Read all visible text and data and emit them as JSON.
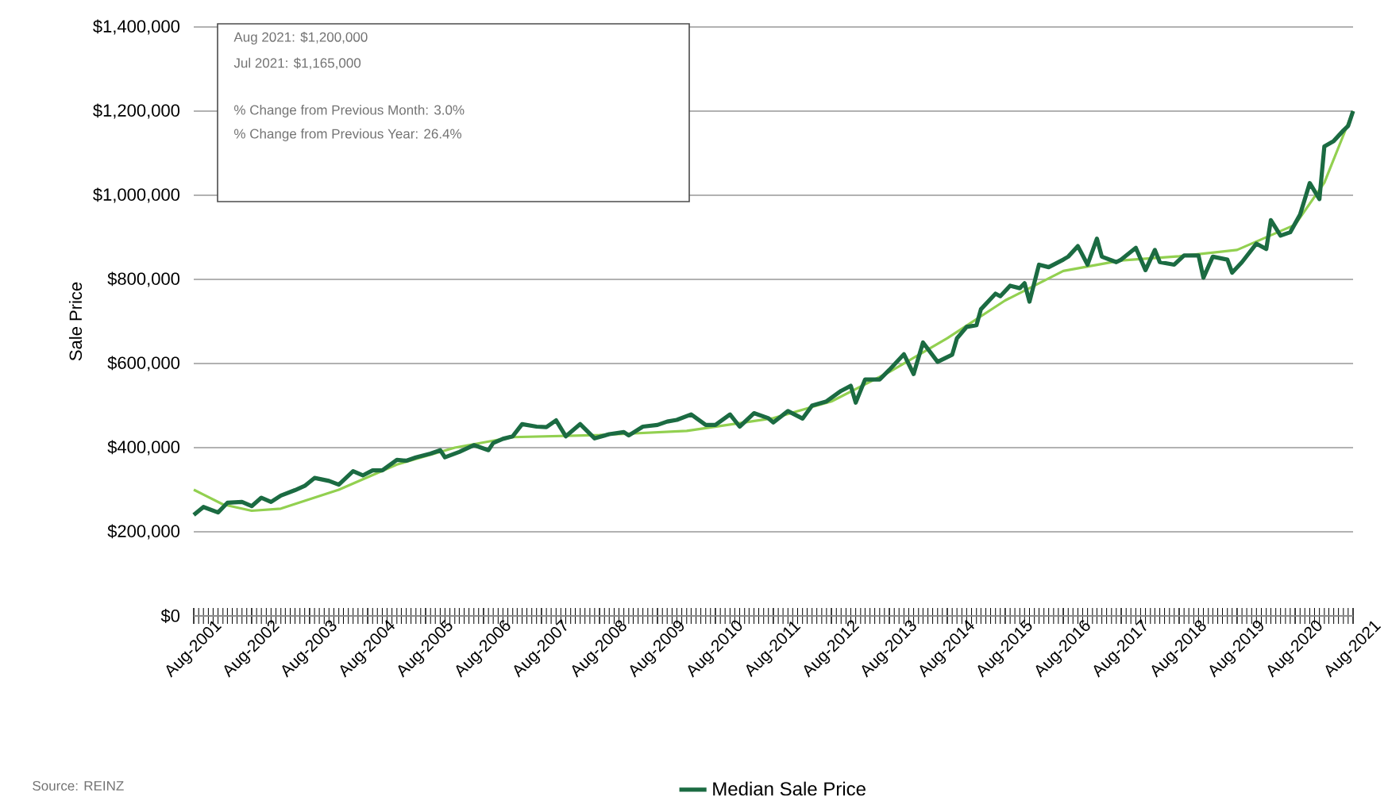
{
  "chart_data": {
    "type": "line",
    "ylabel": "Sale Price",
    "x": [
      "2001-08",
      "2001-10",
      "2002-01",
      "2002-03",
      "2002-06",
      "2002-08",
      "2002-10",
      "2002-12",
      "2003-02",
      "2003-05",
      "2003-07",
      "2003-09",
      "2003-12",
      "2004-02",
      "2004-05",
      "2004-07",
      "2004-09",
      "2004-11",
      "2005-02",
      "2005-04",
      "2005-06",
      "2005-09",
      "2005-11",
      "2005-12",
      "2006-03",
      "2006-06",
      "2006-09",
      "2006-10",
      "2006-12",
      "2007-02",
      "2007-04",
      "2007-07",
      "2007-09",
      "2007-11",
      "2008-01",
      "2008-04",
      "2008-07",
      "2008-10",
      "2009-01",
      "2009-02",
      "2009-05",
      "2009-08",
      "2009-10",
      "2009-12",
      "2010-03",
      "2010-06",
      "2010-08",
      "2010-11",
      "2011-01",
      "2011-04",
      "2011-07",
      "2011-08",
      "2011-11",
      "2012-02",
      "2012-04",
      "2012-07",
      "2012-10",
      "2012-12",
      "2013-01",
      "2013-03",
      "2013-06",
      "2013-08",
      "2013-11",
      "2014-01",
      "2014-03",
      "2014-06",
      "2014-09",
      "2014-10",
      "2014-12",
      "2015-02",
      "2015-03",
      "2015-06",
      "2015-07",
      "2015-09",
      "2015-11",
      "2015-12",
      "2016-01",
      "2016-03",
      "2016-05",
      "2016-08",
      "2016-09",
      "2016-11",
      "2017-01",
      "2017-03",
      "2017-04",
      "2017-07",
      "2017-08",
      "2017-11",
      "2018-01",
      "2018-03",
      "2018-04",
      "2018-07",
      "2018-09",
      "2018-12",
      "2019-01",
      "2019-03",
      "2019-06",
      "2019-07",
      "2019-09",
      "2019-12",
      "2020-02",
      "2020-03",
      "2020-05",
      "2020-07",
      "2020-09",
      "2020-11",
      "2020-12",
      "2021-01",
      "2021-02",
      "2021-04",
      "2021-06",
      "2021-07",
      "2021-08"
    ],
    "series": [
      {
        "name": "Median Sale Price",
        "color": "#1b6b42",
        "values": [
          240000,
          259000,
          246000,
          269000,
          271000,
          261000,
          281000,
          271000,
          286000,
          299000,
          309000,
          328000,
          321000,
          312000,
          344000,
          334000,
          346000,
          346000,
          371000,
          369000,
          377000,
          386000,
          394000,
          377000,
          390000,
          406000,
          394000,
          411000,
          421000,
          427000,
          456000,
          450000,
          449000,
          465000,
          427000,
          456000,
          422000,
          432000,
          437000,
          429000,
          450000,
          454000,
          462000,
          466000,
          479000,
          454000,
          454000,
          479000,
          450000,
          482000,
          470000,
          460000,
          487000,
          469000,
          500000,
          510000,
          535000,
          547000,
          507000,
          562000,
          562000,
          585000,
          622000,
          575000,
          650000,
          604000,
          621000,
          660000,
          687000,
          691000,
          729000,
          766000,
          760000,
          785000,
          779000,
          791000,
          747000,
          835000,
          829000,
          847000,
          854000,
          879000,
          835000,
          897000,
          854000,
          841000,
          847000,
          875000,
          822000,
          870000,
          841000,
          835000,
          857000,
          857000,
          804000,
          854000,
          847000,
          816000,
          841000,
          885000,
          872000,
          941000,
          904000,
          912000,
          954000,
          1029000,
          1010000,
          991000,
          1116000,
          1129000,
          1154000,
          1165000,
          1200000
        ]
      },
      {
        "color": "#92d050",
        "x": [
          "2001-08",
          "2002-02",
          "2002-08",
          "2003-02",
          "2004-02",
          "2005-02",
          "2006-02",
          "2007-02",
          "2008-08",
          "2010-02",
          "2011-08",
          "2012-08",
          "2013-08",
          "2014-08",
          "2015-08",
          "2016-08",
          "2017-08",
          "2018-08",
          "2019-08",
          "2020-08",
          "2021-02",
          "2021-08"
        ],
        "values": [
          300000,
          265000,
          250000,
          255000,
          300000,
          360000,
          400000,
          425000,
          430000,
          440000,
          470000,
          510000,
          580000,
          660000,
          750000,
          820000,
          845000,
          855000,
          870000,
          930000,
          1030000,
          1200000
        ]
      }
    ],
    "xlim": [
      "2001-08",
      "2021-08"
    ],
    "xticks": [
      {
        "value": "2001-08",
        "label": "Aug-2001"
      },
      {
        "value": "2002-08",
        "label": "Aug-2002"
      },
      {
        "value": "2003-08",
        "label": "Aug-2003"
      },
      {
        "value": "2004-08",
        "label": "Aug-2004"
      },
      {
        "value": "2005-08",
        "label": "Aug-2005"
      },
      {
        "value": "2006-08",
        "label": "Aug-2006"
      },
      {
        "value": "2007-08",
        "label": "Aug-2007"
      },
      {
        "value": "2008-08",
        "label": "Aug-2008"
      },
      {
        "value": "2009-08",
        "label": "Aug-2009"
      },
      {
        "value": "2010-08",
        "label": "Aug-2010"
      },
      {
        "value": "2011-08",
        "label": "Aug-2011"
      },
      {
        "value": "2012-08",
        "label": "Aug-2012"
      },
      {
        "value": "2013-08",
        "label": "Aug-2013"
      },
      {
        "value": "2014-08",
        "label": "Aug-2014"
      },
      {
        "value": "2015-08",
        "label": "Aug-2015"
      },
      {
        "value": "2016-08",
        "label": "Aug-2016"
      },
      {
        "value": "2017-08",
        "label": "Aug-2017"
      },
      {
        "value": "2018-08",
        "label": "Aug-2018"
      },
      {
        "value": "2019-08",
        "label": "Aug-2019"
      },
      {
        "value": "2020-08",
        "label": "Aug-2020"
      },
      {
        "value": "2021-08",
        "label": "Aug-2021"
      }
    ],
    "ylim": [
      0,
      1400000
    ],
    "yticks": [
      {
        "value": 0,
        "label": "$0"
      },
      {
        "value": 200000,
        "label": "$200,000"
      },
      {
        "value": 400000,
        "label": "$400,000"
      },
      {
        "value": 600000,
        "label": "$600,000"
      },
      {
        "value": 800000,
        "label": "$800,000"
      },
      {
        "value": 1000000,
        "label": "$1,000,000"
      },
      {
        "value": 1200000,
        "label": "$1,200,000"
      },
      {
        "value": 1400000,
        "label": "$1,400,000"
      }
    ],
    "grid": "y",
    "legend": "bottom",
    "marker": "none",
    "line_style": "solid",
    "annotations": [
      "Aug 2021: $1,200,000",
      "Jul 2021: $1,165,000",
      "% Change from Previous Month: 3.0%",
      "% Change from Previous Year: 26.4%",
      "Source: REINZ"
    ]
  }
}
